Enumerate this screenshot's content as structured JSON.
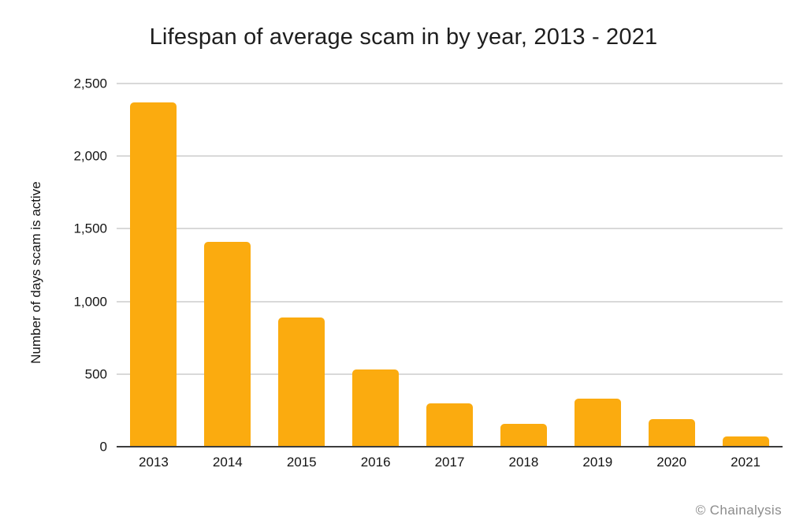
{
  "page": {
    "background": "#FFFFFF"
  },
  "chart_data": {
    "type": "bar",
    "title": "Lifespan of average scam in by year, 2013 - 2021",
    "ylabel": "Number of days scam is active",
    "xlabel": "",
    "categories": [
      "2013",
      "2014",
      "2015",
      "2016",
      "2017",
      "2018",
      "2019",
      "2020",
      "2021"
    ],
    "values": [
      2370,
      1410,
      890,
      530,
      300,
      160,
      330,
      190,
      70
    ],
    "ylim": [
      0,
      2500
    ],
    "yticks": [
      0,
      500,
      1000,
      1500,
      2000,
      2500
    ],
    "ytick_labels": [
      "0",
      "500",
      "1,000",
      "1,500",
      "2,000",
      "2,500"
    ],
    "grid": true,
    "legend": false,
    "annotation": "© Chainalysis",
    "colors": {
      "bar": "#FBAB0F",
      "grid": "#D9D9D9",
      "axis_line": "#3D3D3D",
      "title_text": "#1E1E1E",
      "tick_text": "#141414",
      "watermark_text": "#8C8C8C",
      "background": "#FFFFFF"
    }
  }
}
